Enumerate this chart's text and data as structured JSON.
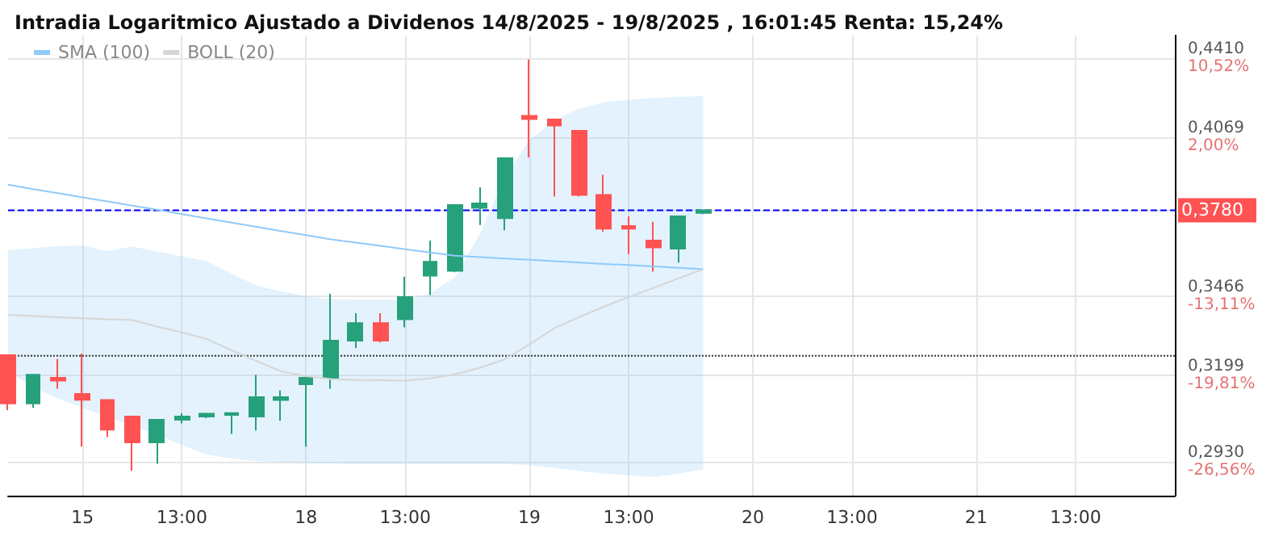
{
  "chart_data": {
    "type": "candlestick",
    "title": "Intradia Logaritmico Ajustado a Dividenos 14/8/2025 - 19/8/2025 , 16:01:45 Renta: 15,24%",
    "categories": [
      null,
      null,
      null,
      "15",
      null,
      null,
      null,
      "13:00",
      null,
      null,
      null,
      null,
      "18",
      null,
      null,
      null,
      "13:00",
      null,
      null,
      null,
      null,
      "19",
      null,
      null,
      null,
      "13:00",
      null,
      null,
      null,
      null,
      "20",
      null,
      null,
      null,
      "13:00",
      null,
      null,
      null,
      null,
      "21",
      null,
      null,
      null,
      "13:00",
      null,
      null,
      null,
      null
    ],
    "ohlc": [
      [
        0.3264,
        0.3264,
        0.3087,
        0.3108
      ],
      [
        0.3108,
        0.32,
        0.3094,
        0.32
      ],
      [
        0.319,
        0.3251,
        0.3155,
        0.3181
      ],
      [
        0.3138,
        0.3269,
        0.2975,
        0.312
      ],
      [
        0.3119,
        0.3119,
        0.3004,
        0.3027
      ],
      [
        0.3067,
        0.3067,
        0.2903,
        0.2988
      ],
      [
        0.2988,
        0.3057,
        0.2924,
        0.3057
      ],
      [
        0.3057,
        0.3077,
        0.3046,
        0.3067
      ],
      [
        0.3067,
        0.3079,
        0.3062,
        0.3076
      ],
      [
        0.3072,
        0.308,
        0.3014,
        0.3078
      ],
      [
        0.3067,
        0.32,
        0.3024,
        0.3128
      ],
      [
        0.3119,
        0.3149,
        0.3054,
        0.3128
      ],
      [
        0.3169,
        0.319,
        0.2975,
        0.319
      ],
      [
        0.319,
        0.3473,
        0.3155,
        0.3312
      ],
      [
        0.3312,
        0.3406,
        0.3287,
        0.3372
      ],
      [
        0.3372,
        0.3406,
        0.3306,
        0.3312
      ],
      [
        0.3385,
        0.3534,
        0.3357,
        0.3462
      ],
      [
        0.3538,
        0.3666,
        0.3469,
        0.3588
      ],
      [
        0.3555,
        0.38,
        0.355,
        0.38
      ],
      [
        0.3789,
        0.3869,
        0.3724,
        0.3806
      ],
      [
        0.375,
        0.3985,
        0.3704,
        0.3985
      ],
      [
        0.4159,
        0.4404,
        0.3987,
        0.4146
      ],
      [
        0.4144,
        0.4144,
        0.3833,
        0.4119
      ],
      [
        0.4097,
        0.4097,
        0.3833,
        0.3839
      ],
      [
        0.3839,
        0.3918,
        0.3699,
        0.371
      ],
      [
        0.372,
        0.3757,
        0.3616,
        0.371
      ],
      [
        0.3666,
        0.3736,
        0.3552,
        0.364
      ],
      [
        0.3636,
        0.3757,
        0.3585,
        0.3757
      ],
      [
        0.377,
        0.378,
        0.3765,
        0.378
      ],
      null,
      null,
      null,
      null,
      null,
      null,
      null,
      null,
      null,
      null,
      null,
      null,
      null,
      null,
      null,
      null,
      null,
      null,
      null
    ],
    "series": [
      {
        "name": "SMA (100)",
        "type": "line",
        "color": "#90caf9",
        "values": [
          0.3879,
          0.3862,
          0.3846,
          0.383,
          0.3814,
          0.3798,
          0.3782,
          0.3765,
          0.3749,
          0.3733,
          0.3717,
          0.3701,
          0.3686,
          0.367,
          0.3658,
          0.3646,
          0.3634,
          0.3622,
          0.361,
          0.3605,
          0.36,
          0.3595,
          0.359,
          0.3585,
          0.358,
          0.3576,
          0.3571,
          0.3566,
          0.3561,
          null,
          null,
          null,
          null,
          null,
          null,
          null,
          null,
          null,
          null,
          null,
          null,
          null,
          null,
          null,
          null,
          null,
          null,
          null
        ]
      },
      {
        "name": "BOLL (20)",
        "type": "line",
        "color": "#d6d6d6",
        "values": [
          0.34,
          0.3396,
          0.3392,
          0.3388,
          0.3385,
          0.3382,
          0.336,
          0.334,
          0.3318,
          0.328,
          0.3245,
          0.3211,
          0.3195,
          0.3186,
          0.3183,
          0.3182,
          0.3181,
          0.3188,
          0.3201,
          0.3222,
          0.325,
          0.33,
          0.3354,
          0.3392,
          0.3428,
          0.3462,
          0.3494,
          0.3528,
          0.3561,
          null,
          null,
          null,
          null,
          null,
          null,
          null,
          null,
          null,
          null,
          null,
          null,
          null,
          null,
          null,
          null,
          null,
          null,
          null
        ],
        "upper": [
          0.363,
          0.3638,
          0.3645,
          0.3648,
          0.3627,
          0.3644,
          0.3625,
          0.3608,
          0.359,
          0.3545,
          0.3503,
          0.3482,
          0.3465,
          0.3455,
          0.3452,
          0.3452,
          0.3452,
          0.3474,
          0.3532,
          0.369,
          0.3907,
          0.4059,
          0.414,
          0.419,
          0.4217,
          0.4228,
          0.4236,
          0.424,
          0.4244,
          null,
          null,
          null,
          null,
          null,
          null,
          null,
          null,
          null,
          null,
          null,
          null,
          null,
          null,
          null,
          null,
          null,
          null,
          null
        ],
        "lower": [
          0.3211,
          0.316,
          0.3124,
          0.3095,
          0.3065,
          0.3041,
          0.301,
          0.298,
          0.2951,
          0.294,
          0.2932,
          0.2928,
          0.2926,
          0.2925,
          0.2924,
          0.2924,
          0.2924,
          0.2924,
          0.2924,
          0.2924,
          0.2924,
          0.292,
          0.2912,
          0.2903,
          0.2895,
          0.289,
          0.2885,
          0.2895,
          0.2907,
          null,
          null,
          null,
          null,
          null,
          null,
          null,
          null,
          null,
          null,
          null,
          null,
          null,
          null,
          null,
          null,
          null,
          null,
          null
        ]
      }
    ],
    "ref_lines": [
      {
        "axis": "y",
        "value": 0.378,
        "label": "0,3780",
        "color": "#0000ff",
        "line_style": "dashed"
      },
      {
        "axis": "y",
        "value": 0.3262,
        "label": null,
        "color": "#333333",
        "line_style": "dotted"
      }
    ],
    "log": true,
    "ylim": [
      0.2831,
      0.4512
    ],
    "yticks": [
      {
        "value": 0.293,
        "label": "0,2930"
      },
      {
        "value": 0.3199,
        "label": "0,3199"
      },
      {
        "value": 0.3466,
        "label": "0,3466"
      },
      {
        "value": 0.378,
        "label": null
      },
      {
        "value": 0.4069,
        "label": "0,4069"
      },
      {
        "value": 0.441,
        "label": "0,4410"
      }
    ],
    "annotations": [
      "-26,56%",
      "-19,81%",
      "-13,11%",
      "2,00%",
      "10,52%"
    ],
    "grid": true,
    "legend": "top left"
  }
}
